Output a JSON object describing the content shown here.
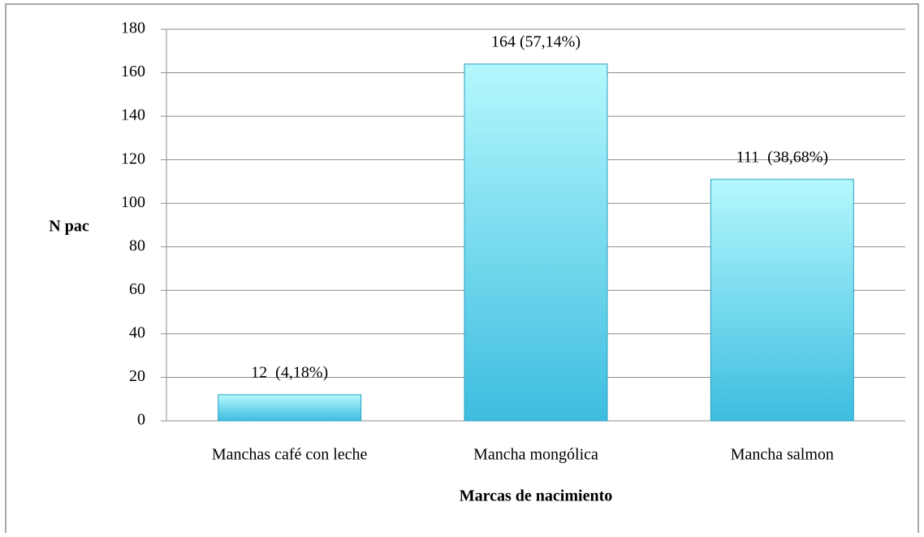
{
  "chart_data": {
    "type": "bar",
    "x_label": "Marcas de nacimiento",
    "y_label": "N pac",
    "categories": [
      "Manchas café con leche",
      "Mancha mongólica",
      "Mancha salmon"
    ],
    "values": [
      12,
      164,
      111
    ],
    "value_labels": [
      "12  (4,18%)",
      "164 (57,14%)",
      "111  (38,68%)"
    ],
    "color": "#5ccbe6",
    "ylim": [
      0,
      180
    ],
    "yticks": [
      0,
      20,
      40,
      60,
      80,
      100,
      120,
      140,
      160,
      180
    ],
    "grid": true
  }
}
